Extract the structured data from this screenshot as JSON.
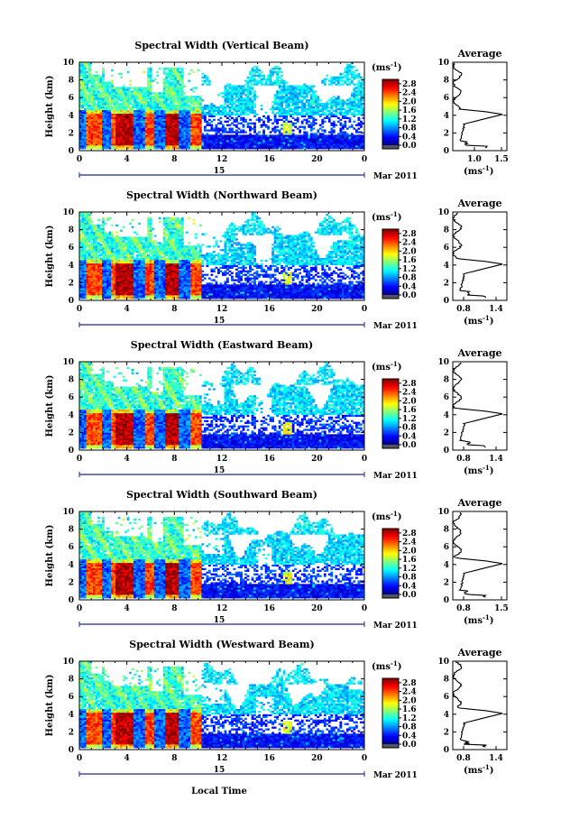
{
  "figure": {
    "xlabel": "Local Time",
    "date_label": "Mar 2011",
    "day_label": "15",
    "colorbar_unit": "(ms",
    "colorbar_unit_sup": "-1",
    "colorbar_unit_close": ")",
    "profile_title": "Average",
    "profile_unit": "(ms",
    "profile_unit_sup": "-1",
    "profile_unit_close": ")",
    "ylabel": "Height (km)"
  },
  "chart_data": [
    {
      "type": "heatmap",
      "title": "Spectral Width (Vertical Beam)",
      "ylabel": "Height (km)",
      "xlabel": "",
      "x_ticks": [
        "0",
        "4",
        "8",
        "12",
        "16",
        "20",
        "0"
      ],
      "x_range": [
        0,
        24
      ],
      "y_ticks": [
        "0",
        "2",
        "4",
        "6",
        "8",
        "10"
      ],
      "y_range": [
        0,
        10
      ],
      "colorbar": {
        "ticks": [
          "0.0",
          "0.4",
          "0.8",
          "1.2",
          "1.6",
          "2.0",
          "2.4",
          "2.8"
        ],
        "range": [
          0,
          3.0
        ],
        "colormap": "jet"
      },
      "profile": {
        "title": "Average",
        "x_ticks": [
          "1.0",
          "1.5"
        ],
        "x_range": [
          0.6,
          1.6
        ],
        "y_ticks": [
          "0",
          "2",
          "4",
          "6",
          "8",
          "10"
        ],
        "y_range": [
          0,
          10
        ]
      }
    },
    {
      "type": "heatmap",
      "title": "Spectral Width (Northward Beam)",
      "ylabel": "Height (km)",
      "xlabel": "",
      "x_ticks": [
        "0",
        "4",
        "8",
        "12",
        "16",
        "20",
        "0"
      ],
      "x_range": [
        0,
        24
      ],
      "y_ticks": [
        "0",
        "2",
        "4",
        "6",
        "8",
        "10"
      ],
      "y_range": [
        0,
        10
      ],
      "colorbar": {
        "ticks": [
          "0.0",
          "0.4",
          "0.8",
          "1.2",
          "1.6",
          "2.0",
          "2.4",
          "2.8"
        ],
        "range": [
          0,
          3.0
        ],
        "colormap": "jet"
      },
      "profile": {
        "title": "Average",
        "x_ticks": [
          "0.8",
          "1.4"
        ],
        "x_range": [
          0.6,
          1.6
        ],
        "y_ticks": [
          "0",
          "2",
          "4",
          "6",
          "8",
          "10"
        ],
        "y_range": [
          0,
          10
        ]
      }
    },
    {
      "type": "heatmap",
      "title": "Spectral Width (Eastward Beam)",
      "ylabel": "Height (km)",
      "xlabel": "",
      "x_ticks": [
        "0",
        "4",
        "8",
        "12",
        "16",
        "20",
        "0"
      ],
      "x_range": [
        0,
        24
      ],
      "y_ticks": [
        "0",
        "2",
        "4",
        "6",
        "8",
        "10"
      ],
      "y_range": [
        0,
        10
      ],
      "colorbar": {
        "ticks": [
          "0.0",
          "0.4",
          "0.8",
          "1.2",
          "1.6",
          "2.0",
          "2.4",
          "2.8"
        ],
        "range": [
          0,
          3.0
        ],
        "colormap": "jet"
      },
      "profile": {
        "title": "Average",
        "x_ticks": [
          "0.8",
          "1.4"
        ],
        "x_range": [
          0.6,
          1.6
        ],
        "y_ticks": [
          "0",
          "2",
          "4",
          "6",
          "8",
          "10"
        ],
        "y_range": [
          0,
          10
        ]
      }
    },
    {
      "type": "heatmap",
      "title": "Spectral Width (Southward Beam)",
      "ylabel": "Height (km)",
      "xlabel": "",
      "x_ticks": [
        "0",
        "4",
        "8",
        "12",
        "16",
        "20",
        "0"
      ],
      "x_range": [
        0,
        24
      ],
      "y_ticks": [
        "0",
        "2",
        "4",
        "6",
        "8",
        "10"
      ],
      "y_range": [
        0,
        10
      ],
      "colorbar": {
        "ticks": [
          "0.0",
          "0.4",
          "0.8",
          "1.2",
          "1.6",
          "2.0",
          "2.4",
          "2.8"
        ],
        "range": [
          0,
          3.0
        ],
        "colormap": "jet"
      },
      "profile": {
        "title": "Average",
        "x_ticks": [
          "0.8",
          "1.5"
        ],
        "x_range": [
          0.6,
          1.6
        ],
        "y_ticks": [
          "0",
          "2",
          "4",
          "6",
          "8",
          "10"
        ],
        "y_range": [
          0,
          10
        ]
      }
    },
    {
      "type": "heatmap",
      "title": "Spectral Width (Westward Beam)",
      "ylabel": "Height (km)",
      "xlabel": "Local Time",
      "x_ticks": [
        "0",
        "4",
        "8",
        "12",
        "16",
        "20",
        "0"
      ],
      "x_range": [
        0,
        24
      ],
      "y_ticks": [
        "0",
        "2",
        "4",
        "6",
        "8",
        "10"
      ],
      "y_range": [
        0,
        10
      ],
      "colorbar": {
        "ticks": [
          "0.0",
          "0.4",
          "0.8",
          "1.2",
          "1.6",
          "2.0",
          "2.4",
          "2.8"
        ],
        "range": [
          0,
          3.0
        ],
        "colormap": "jet"
      },
      "profile": {
        "title": "Average",
        "x_ticks": [
          "0.8",
          "1.4"
        ],
        "x_range": [
          0.6,
          1.6
        ],
        "y_ticks": [
          "0",
          "2",
          "4",
          "6",
          "8",
          "10"
        ],
        "y_range": [
          0,
          10
        ]
      }
    }
  ]
}
